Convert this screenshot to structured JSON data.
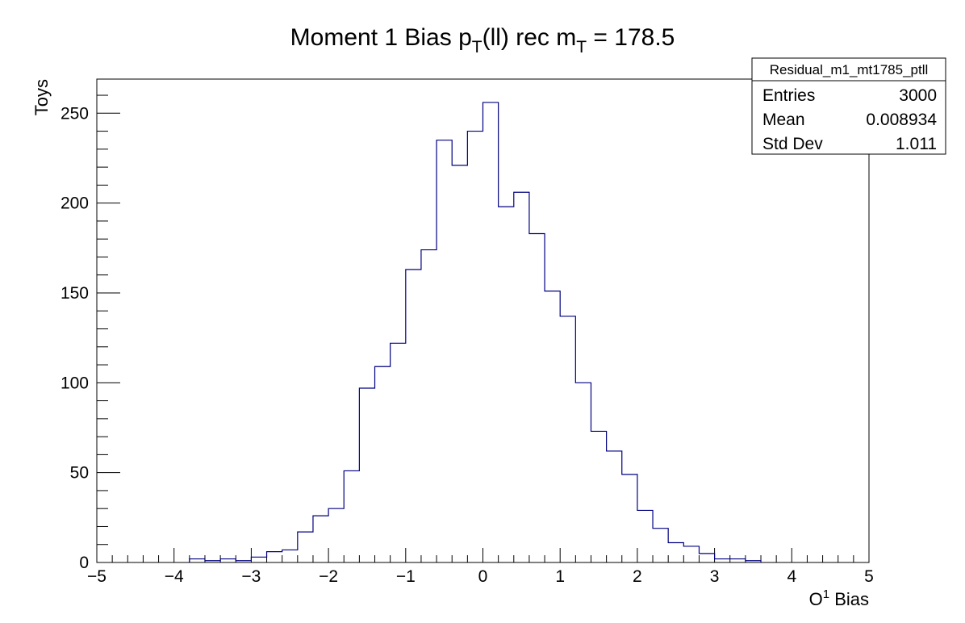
{
  "chart_data": {
    "type": "bar",
    "title": {
      "main": "Moment 1 Bias  p",
      "sub1": "T",
      "mid": "(ll) rec  m",
      "sub2": "T",
      "tail": " = 178.5"
    },
    "xlabel": {
      "base": "O",
      "sup": "1",
      "tail": " Bias"
    },
    "ylabel": "Toys",
    "xlim": [
      -5,
      5
    ],
    "ylim": [
      0,
      269
    ],
    "bin_width": 0.2,
    "x_ticks": [
      -5,
      -4,
      -3,
      -2,
      -1,
      0,
      1,
      2,
      3,
      4,
      5
    ],
    "x_tick_labels": [
      "−5",
      "−4",
      "−3",
      "−2",
      "−1",
      "0",
      "1",
      "2",
      "3",
      "4",
      "5"
    ],
    "y_ticks": [
      0,
      50,
      100,
      150,
      200,
      250
    ],
    "y_tick_labels": [
      "0",
      "50",
      "100",
      "150",
      "200",
      "250"
    ],
    "line_color": "#000080",
    "bin_lows": [
      -3.8,
      -3.6,
      -3.4,
      -3.2,
      -3.0,
      -2.8,
      -2.6,
      -2.4,
      -2.2,
      -2.0,
      -1.8,
      -1.6,
      -1.4,
      -1.2,
      -1.0,
      -0.8,
      -0.6,
      -0.4,
      -0.2,
      0.0,
      0.2,
      0.4,
      0.6,
      0.8,
      1.0,
      1.2,
      1.4,
      1.6,
      1.8,
      2.0,
      2.2,
      2.4,
      2.6,
      2.8,
      3.0,
      3.2,
      3.4
    ],
    "values": [
      2,
      1,
      2,
      1,
      3,
      6,
      7,
      17,
      26,
      30,
      51,
      97,
      109,
      122,
      163,
      174,
      235,
      221,
      240,
      256,
      198,
      206,
      183,
      151,
      137,
      100,
      73,
      62,
      49,
      29,
      19,
      11,
      9,
      5,
      2,
      2,
      1
    ],
    "grid": false,
    "legend": "none"
  },
  "stats_box": {
    "name": "Residual_m1_mt1785_ptll",
    "rows": [
      {
        "label": "Entries",
        "value": "3000"
      },
      {
        "label": "Mean",
        "value": "0.008934"
      },
      {
        "label": "Std Dev",
        "value": "1.011"
      }
    ]
  }
}
